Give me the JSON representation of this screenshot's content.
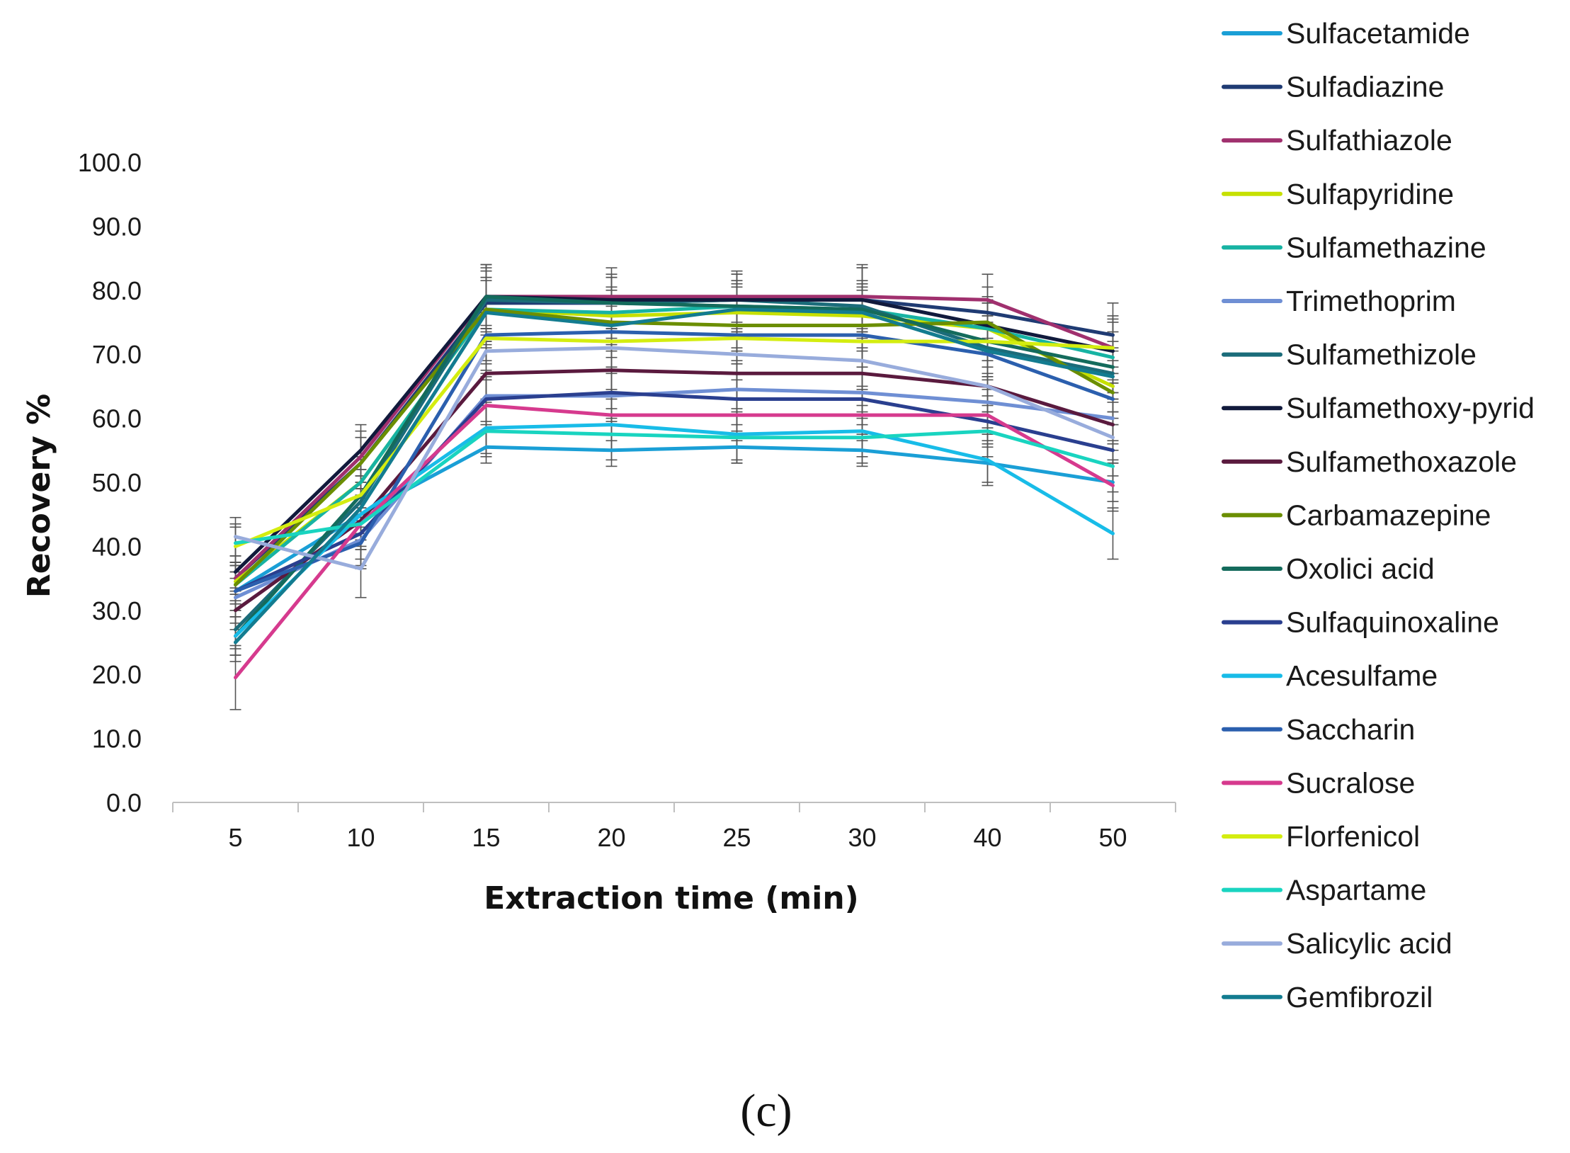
{
  "chart_data": {
    "type": "line",
    "title": "",
    "xlabel": "Extraction time (min)",
    "ylabel": "Recovery %",
    "panel_label": "(c)",
    "categories": [
      "5",
      "10",
      "15",
      "20",
      "25",
      "30",
      "40",
      "50"
    ],
    "y_ticks": [
      "0.0",
      "10.0",
      "20.0",
      "30.0",
      "40.0",
      "50.0",
      "60.0",
      "70.0",
      "80.0",
      "90.0",
      "100.0"
    ],
    "ylim": [
      0,
      100
    ],
    "grid": false,
    "legend_position": "right",
    "error_bars": true,
    "series": [
      {
        "name": "Sulfacetamide",
        "color": "#1a9fd6",
        "values": [
          33,
          45,
          55.5,
          55,
          55.5,
          55,
          53,
          50
        ],
        "errors": [
          3,
          4,
          2.5,
          2.5,
          2.5,
          2.5,
          3,
          3
        ]
      },
      {
        "name": "Sulfadiazine",
        "color": "#1f3b73",
        "values": [
          35,
          53,
          78,
          78,
          78.5,
          78.5,
          76.5,
          73
        ],
        "errors": [
          2.5,
          4,
          5,
          4,
          4,
          5,
          4,
          5
        ]
      },
      {
        "name": "Sulfathiazole",
        "color": "#a0306e",
        "values": [
          35,
          54,
          79,
          79,
          79,
          79,
          78.5,
          71
        ],
        "errors": [
          2.5,
          4,
          5,
          4.5,
          4,
          5,
          4,
          5
        ]
      },
      {
        "name": "Sulfapyridine",
        "color": "#c6e000",
        "values": [
          34.5,
          50,
          77,
          76,
          76.5,
          76,
          74,
          65
        ],
        "errors": [
          3,
          4,
          5,
          4,
          4,
          4,
          4,
          4
        ]
      },
      {
        "name": "Sulfamethazine",
        "color": "#17b3a3",
        "values": [
          34,
          50,
          77,
          76.5,
          77.5,
          77,
          74,
          69.5
        ],
        "errors": [
          3,
          4,
          5,
          4,
          4,
          4,
          4,
          4
        ]
      },
      {
        "name": "Trimethoprim",
        "color": "#6f8fd4",
        "values": [
          32,
          41,
          63.5,
          63.5,
          64.5,
          64,
          62.5,
          60
        ],
        "errors": [
          3,
          4,
          4,
          4,
          4,
          4,
          4,
          4
        ]
      },
      {
        "name": "Sulfamethizole",
        "color": "#1b6c7a",
        "values": [
          27,
          47,
          78.5,
          78,
          78.5,
          77.5,
          71,
          67
        ],
        "errors": [
          3,
          4,
          5,
          4,
          4,
          4,
          4,
          4
        ]
      },
      {
        "name": "Sulfamethoxy-pyrid",
        "color": "#111a3c",
        "values": [
          36,
          55,
          79,
          78.5,
          78.5,
          78.5,
          74.5,
          70.5
        ],
        "errors": [
          2.5,
          4,
          5,
          4,
          4,
          5,
          4,
          5
        ]
      },
      {
        "name": "Sulfamethoxazole",
        "color": "#5a1a3e",
        "values": [
          30,
          44,
          67,
          67.5,
          67,
          67,
          65,
          59
        ],
        "errors": [
          3,
          4,
          4,
          4,
          4,
          4,
          4,
          4
        ]
      },
      {
        "name": "Carbamazepine",
        "color": "#6b8e00",
        "values": [
          34,
          53,
          77,
          75,
          74.5,
          74.5,
          75,
          64
        ],
        "errors": [
          3,
          4,
          5,
          4,
          4,
          4,
          4,
          4
        ]
      },
      {
        "name": "Oxolici acid",
        "color": "#146b5c",
        "values": [
          26,
          48,
          79,
          78,
          77.5,
          77,
          72,
          68
        ],
        "errors": [
          3,
          4,
          5,
          4,
          4,
          4,
          4,
          4
        ]
      },
      {
        "name": "Sulfaquinoxaline",
        "color": "#2a3f8f",
        "values": [
          33,
          42,
          63,
          64,
          63,
          63,
          59.5,
          55
        ],
        "errors": [
          3,
          4,
          4,
          4,
          4,
          4,
          4,
          4
        ]
      },
      {
        "name": "Acesulfame",
        "color": "#18bce8",
        "values": [
          26,
          45,
          58.5,
          59,
          57.5,
          58,
          53.5,
          42
        ],
        "errors": [
          3,
          4,
          4,
          4,
          4,
          4,
          4,
          4
        ]
      },
      {
        "name": "Saccharin",
        "color": "#2b5fae",
        "values": [
          33,
          40.5,
          73,
          73.5,
          73,
          73,
          70,
          63
        ],
        "errors": [
          3,
          4,
          4,
          4,
          4,
          4,
          4,
          4
        ]
      },
      {
        "name": "Sucralose",
        "color": "#d63a8e",
        "values": [
          19.5,
          43.5,
          62,
          60.5,
          60.5,
          60.5,
          60.5,
          49.5
        ],
        "errors": [
          5,
          4,
          4,
          4,
          4,
          4,
          4,
          4
        ]
      },
      {
        "name": "Florfenicol",
        "color": "#d4ed10",
        "values": [
          40,
          48,
          72.5,
          72,
          72.5,
          72,
          72,
          71
        ],
        "errors": [
          3,
          4,
          4,
          4,
          4,
          4,
          4,
          4
        ]
      },
      {
        "name": "Aspartame",
        "color": "#19d4c0",
        "values": [
          40.5,
          43.5,
          58,
          57.5,
          57,
          57,
          58,
          52.5
        ],
        "errors": [
          3,
          4,
          4,
          4,
          4,
          4,
          4,
          4
        ]
      },
      {
        "name": "Salicylic acid",
        "color": "#98acdc",
        "values": [
          41.5,
          36.5,
          70.5,
          71,
          70,
          69,
          65,
          57
        ],
        "errors": [
          3,
          4.5,
          4,
          4,
          4,
          4,
          4,
          4
        ]
      },
      {
        "name": "Gemfibrozil",
        "color": "#137c90",
        "values": [
          25,
          46,
          76.5,
          74.5,
          77,
          76.5,
          70.5,
          66.5
        ],
        "errors": [
          3,
          4,
          5,
          4,
          4,
          4,
          4,
          4
        ]
      }
    ]
  }
}
